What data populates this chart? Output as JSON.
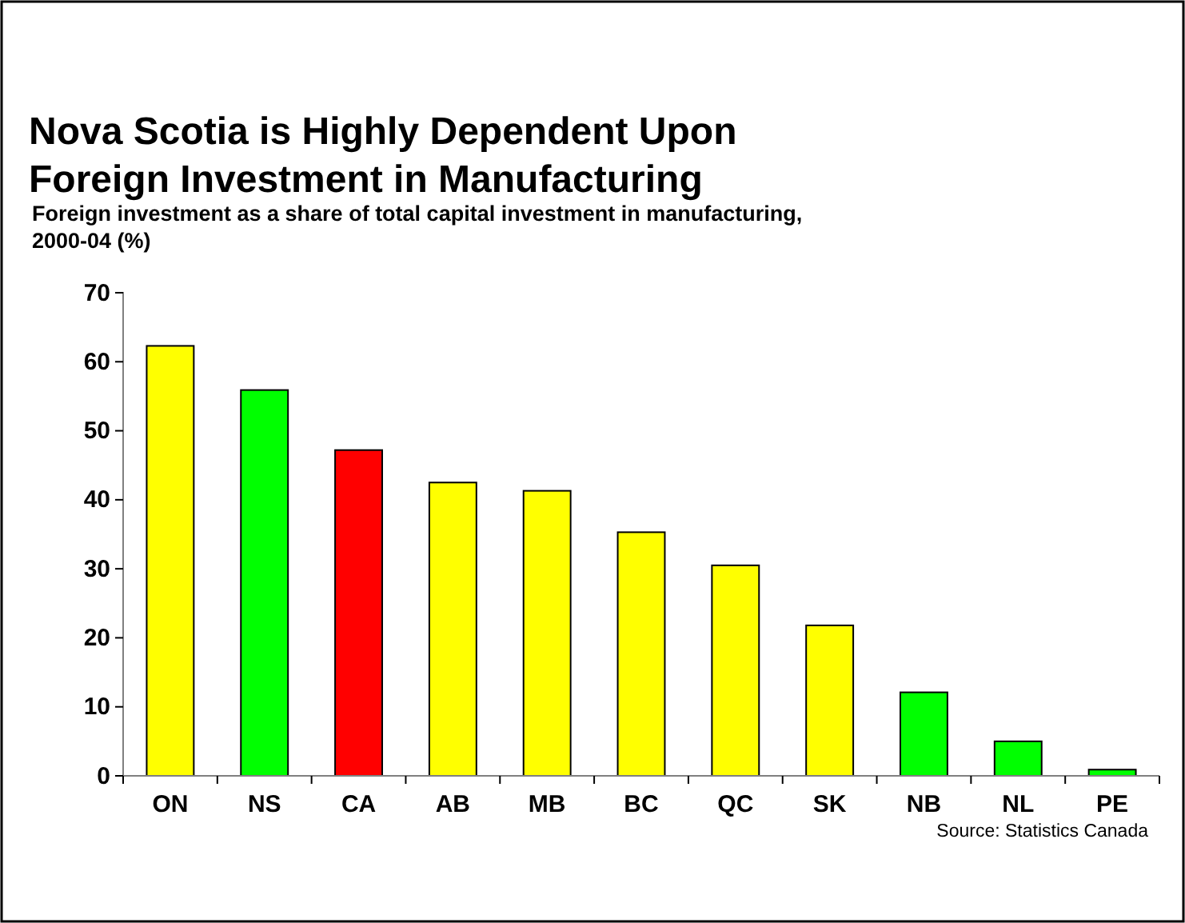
{
  "chart_data": {
    "type": "bar",
    "title": "Nova Scotia is Highly Dependent Upon Foreign Investment in Manufacturing",
    "subtitle": "Foreign investment as a share of total capital investment in manufacturing, 2000-04 (%)",
    "categories": [
      "ON",
      "NS",
      "CA",
      "AB",
      "MB",
      "BC",
      "QC",
      "SK",
      "NB",
      "NL",
      "PE"
    ],
    "values": [
      62.3,
      55.9,
      47.2,
      42.5,
      41.3,
      35.3,
      30.5,
      21.8,
      12.1,
      5.0,
      0.9
    ],
    "colors": [
      "#ffff00",
      "#00ff00",
      "#ff0000",
      "#ffff00",
      "#ffff00",
      "#ffff00",
      "#ffff00",
      "#ffff00",
      "#00ff00",
      "#00ff00",
      "#00ff00"
    ],
    "ylim": [
      0,
      70
    ],
    "yticks": [
      0,
      10,
      20,
      30,
      40,
      50,
      60,
      70
    ],
    "grid": false,
    "annotations": [
      "Source: Statistics Canada"
    ]
  }
}
